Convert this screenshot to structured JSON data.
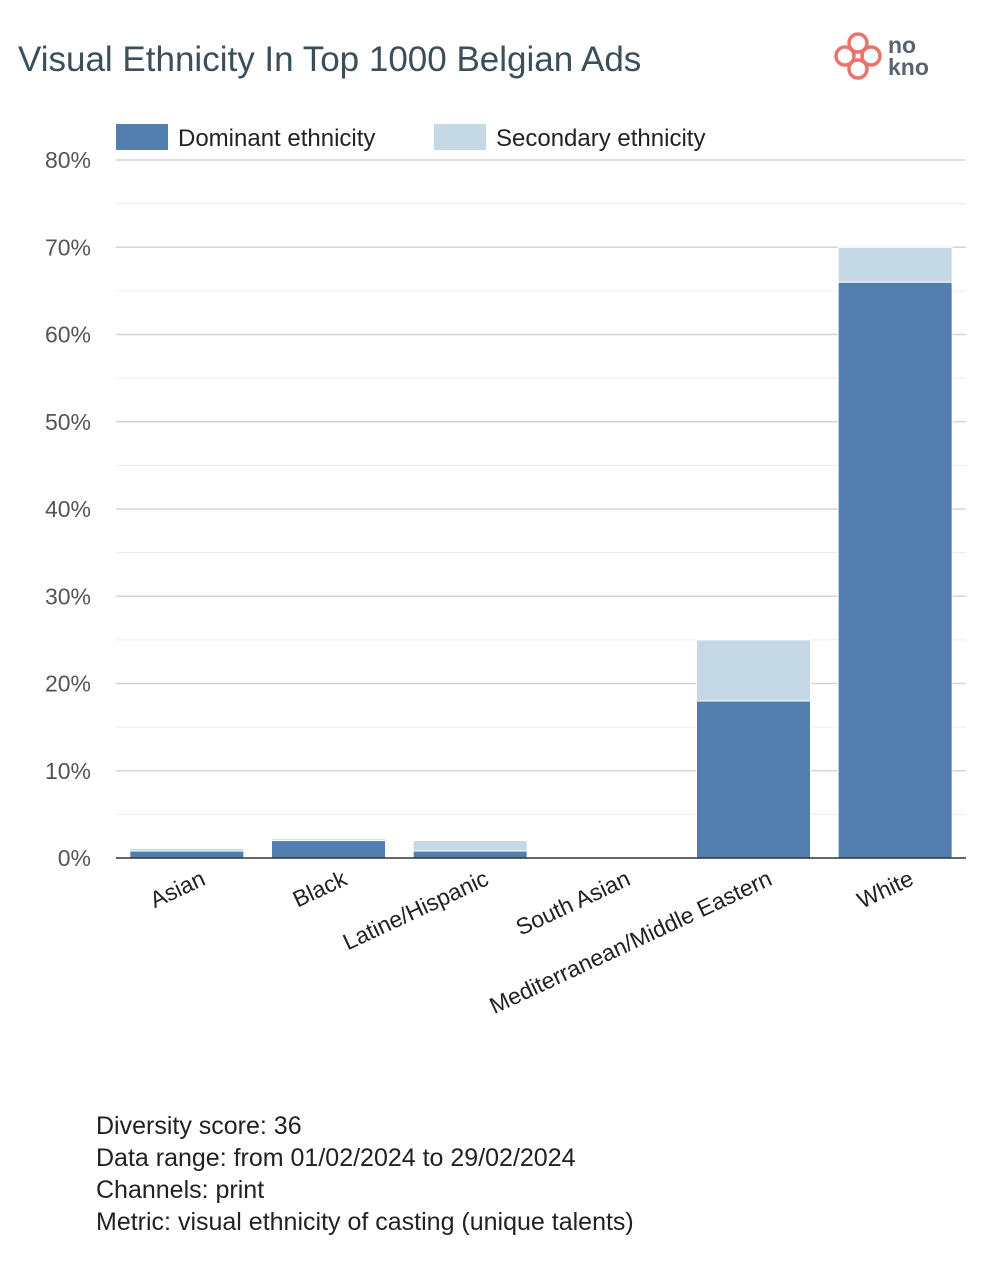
{
  "logo": {
    "text_line1": "no",
    "text_line2": "kno",
    "color": "#e8746c"
  },
  "chart_data": {
    "type": "bar",
    "stacked": true,
    "title": "Visual Ethnicity In Top 1000 Belgian Ads",
    "categories": [
      "Asian",
      "Black",
      "Latine/Hispanic",
      "South Asian",
      "Mediterranean/Middle Eastern",
      "White"
    ],
    "series": [
      {
        "name": "Dominant ethnicity",
        "color": "#527eb0",
        "values": [
          0.8,
          2,
          0.8,
          0,
          18,
          66
        ]
      },
      {
        "name": "Secondary ethnicity",
        "color": "#c5d8e6",
        "values": [
          0.3,
          0.2,
          1.2,
          0,
          7,
          4
        ]
      }
    ],
    "ylim": [
      0,
      80
    ],
    "yticks": [
      0,
      10,
      20,
      30,
      40,
      50,
      60,
      70,
      80
    ],
    "ytick_labels": [
      "0%",
      "10%",
      "20%",
      "30%",
      "40%",
      "50%",
      "60%",
      "70%",
      "80%"
    ],
    "grid": true,
    "legend_position": "top-left"
  },
  "notes": [
    "Diversity score: 36",
    "Data range: from 01/02/2024 to 29/02/2024",
    "Channels: print",
    "Metric: visual ethnicity of casting (unique talents)"
  ]
}
